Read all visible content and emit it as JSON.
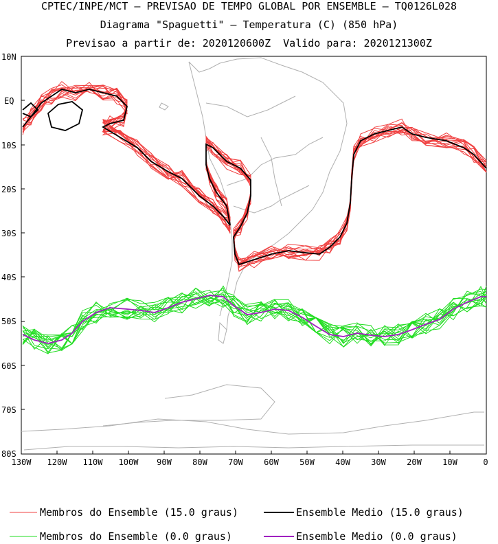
{
  "header": {
    "line1": "CPTEC/INPE/MCT – PREVISAO DE TEMPO GLOBAL POR ENSEMBLE – TQ0126L028",
    "line2": "Diagrama \"Spaguetti\" – Temperatura (C) (850 hPa)",
    "line3": "Previsao a partir de: 2020120600Z  Valido para: 2020121300Z"
  },
  "axes": {
    "lat_labels": [
      "10N",
      "EQ",
      "10S",
      "20S",
      "30S",
      "40S",
      "50S",
      "60S",
      "70S",
      "80S"
    ],
    "lon_labels": [
      "130W",
      "120W",
      "110W",
      "100W",
      "90W",
      "80W",
      "70W",
      "60W",
      "50W",
      "40W",
      "30W",
      "20W",
      "10W",
      "0"
    ]
  },
  "legend": {
    "members_15_label": "Membros do Ensemble (15.0 graus)",
    "mean_15_label": "Ensemble Medio (15.0 graus)",
    "members_0_label": "Membros do Ensemble (0.0 graus)",
    "mean_0_label": "Ensemble Medio (0.0 graus)"
  },
  "colors": {
    "members_15": "#f04040",
    "mean_15": "#000000",
    "members_0": "#22dd22",
    "mean_0": "#a020c0",
    "coast": "#b0b0b0"
  }
}
